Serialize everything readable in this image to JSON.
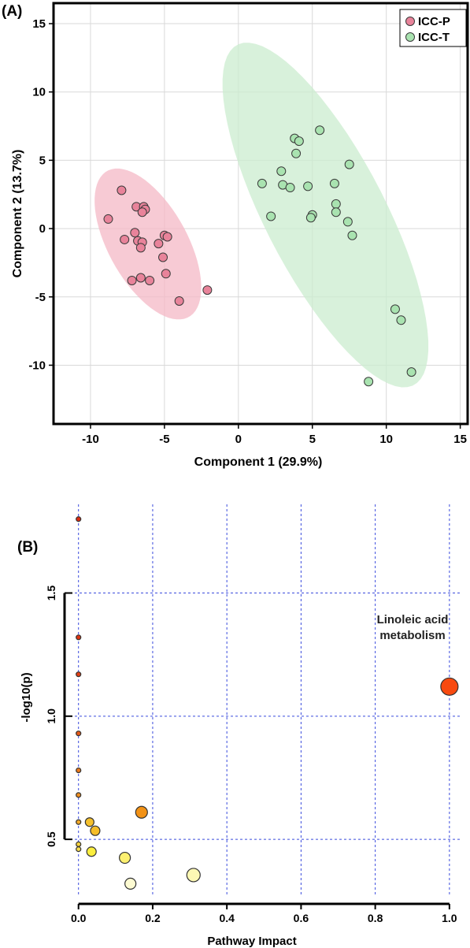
{
  "chart_data": [
    {
      "panel_label": "(A)",
      "type": "scatter",
      "xlabel": "Component 1 (29.9%)",
      "ylabel": "Component 2 (13.7%)",
      "xlim": [
        -12.5,
        15.5
      ],
      "ylim": [
        -14.3,
        16.5
      ],
      "xticks": [
        "-10",
        "-5",
        "0",
        "5",
        "10",
        "15"
      ],
      "yticks": [
        "-10",
        "-5",
        "0",
        "5",
        "10",
        "15"
      ],
      "grid": true,
      "legend_position": "top-right",
      "series": [
        {
          "name": "ICC-P",
          "color": "#e8839a",
          "ellipse_color": "#f4b8c6",
          "points": [
            [
              -7.9,
              2.8
            ],
            [
              -8.8,
              0.7
            ],
            [
              -7.7,
              -0.8
            ],
            [
              -6.9,
              1.6
            ],
            [
              -6.4,
              1.6
            ],
            [
              -6.3,
              1.4
            ],
            [
              -6.5,
              1.2
            ],
            [
              -7.0,
              -0.3
            ],
            [
              -6.8,
              -0.9
            ],
            [
              -6.5,
              -1.0
            ],
            [
              -6.6,
              -1.4
            ],
            [
              -5.4,
              -1.1
            ],
            [
              -5.0,
              -0.5
            ],
            [
              -4.8,
              -0.6
            ],
            [
              -5.1,
              -2.1
            ],
            [
              -7.2,
              -3.8
            ],
            [
              -6.6,
              -3.6
            ],
            [
              -6.0,
              -3.8
            ],
            [
              -4.9,
              -3.3
            ],
            [
              -4.0,
              -5.3
            ],
            [
              -2.1,
              -4.5
            ]
          ]
        },
        {
          "name": "ICC-T",
          "color": "#a9e3b0",
          "ellipse_color": "#cbeccf",
          "points": [
            [
              5.5,
              7.2
            ],
            [
              3.8,
              6.6
            ],
            [
              4.1,
              6.4
            ],
            [
              3.9,
              5.5
            ],
            [
              7.5,
              4.7
            ],
            [
              2.9,
              4.2
            ],
            [
              1.6,
              3.3
            ],
            [
              3.0,
              3.2
            ],
            [
              3.5,
              3.0
            ],
            [
              4.7,
              3.1
            ],
            [
              6.5,
              3.3
            ],
            [
              6.6,
              1.8
            ],
            [
              6.6,
              1.2
            ],
            [
              5.0,
              1.0
            ],
            [
              4.9,
              0.8
            ],
            [
              2.2,
              0.9
            ],
            [
              7.4,
              0.5
            ],
            [
              7.7,
              -0.5
            ],
            [
              10.6,
              -5.9
            ],
            [
              11.0,
              -6.7
            ],
            [
              11.7,
              -10.5
            ],
            [
              8.8,
              -11.2
            ]
          ]
        }
      ]
    },
    {
      "panel_label": "(B)",
      "type": "scatter",
      "xlabel": "Pathway Impact",
      "ylabel": "-log10(p)",
      "xlim": [
        -0.01,
        1.03
      ],
      "ylim": [
        0.27,
        1.86
      ],
      "xticks": [
        "0.0",
        "0.2",
        "0.4",
        "0.6",
        "0.8",
        "1.0"
      ],
      "yticks": [
        "0.5",
        "1.0",
        "1.5"
      ],
      "grid": true,
      "annotation": [
        "Linoleic acid",
        "metabolism"
      ],
      "points": [
        {
          "x": 0.0,
          "y": 1.8,
          "size": 3,
          "color": "#dd2a10"
        },
        {
          "x": 0.0,
          "y": 1.32,
          "size": 3,
          "color": "#df3412"
        },
        {
          "x": 0.0,
          "y": 1.17,
          "size": 3,
          "color": "#e24016"
        },
        {
          "x": 0.0,
          "y": 0.93,
          "size": 3,
          "color": "#e65a18"
        },
        {
          "x": 0.0,
          "y": 0.78,
          "size": 3,
          "color": "#ec7a1c"
        },
        {
          "x": 0.0,
          "y": 0.68,
          "size": 3,
          "color": "#ef8e20"
        },
        {
          "x": 0.0,
          "y": 0.57,
          "size": 3,
          "color": "#f2a928"
        },
        {
          "x": 0.0,
          "y": 0.48,
          "size": 3,
          "color": "#f7d340"
        },
        {
          "x": 0.0,
          "y": 0.46,
          "size": 3,
          "color": "#f9de52"
        },
        {
          "x": 0.03,
          "y": 0.57,
          "size": 5.5,
          "color": "#f5c02c"
        },
        {
          "x": 0.045,
          "y": 0.535,
          "size": 6,
          "color": "#f5bd28"
        },
        {
          "x": 0.035,
          "y": 0.45,
          "size": 6,
          "color": "#fbee3e"
        },
        {
          "x": 0.17,
          "y": 0.61,
          "size": 7.5,
          "color": "#f29216"
        },
        {
          "x": 0.125,
          "y": 0.425,
          "size": 7,
          "color": "#fcf070"
        },
        {
          "x": 0.14,
          "y": 0.32,
          "size": 7,
          "color": "#fdfbd2"
        },
        {
          "x": 0.31,
          "y": 0.355,
          "size": 8.5,
          "color": "#fdf8b4"
        },
        {
          "x": 1.0,
          "y": 1.12,
          "size": 11,
          "color": "#f84a10"
        }
      ]
    }
  ]
}
